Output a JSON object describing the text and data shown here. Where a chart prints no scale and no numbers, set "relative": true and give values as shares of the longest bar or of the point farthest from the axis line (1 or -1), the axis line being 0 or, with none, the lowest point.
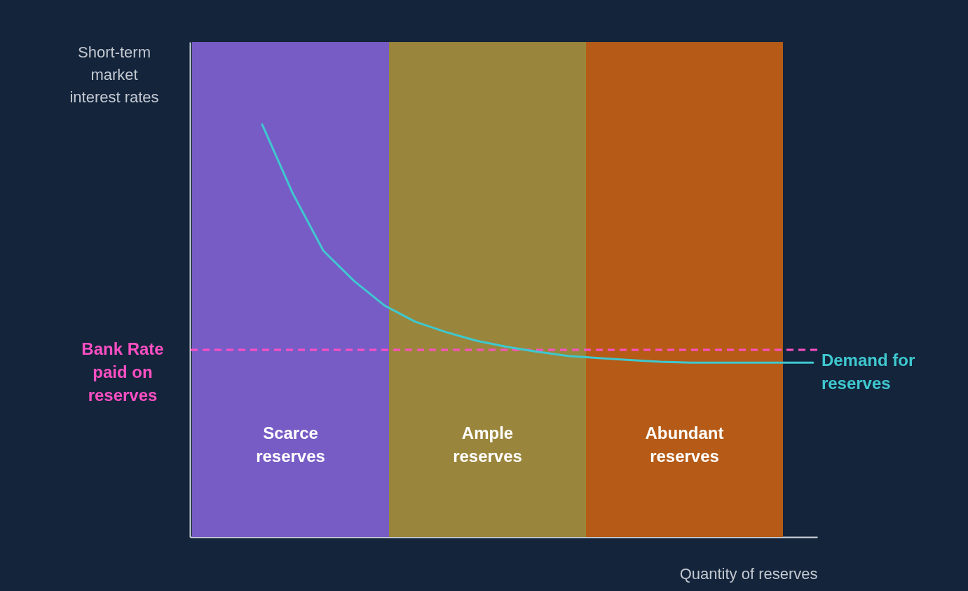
{
  "chart_data": {
    "type": "line",
    "relative": true,
    "xlabel": "Quantity of reserves",
    "grid": false,
    "line_style": "solid",
    "annotations": [
      "Short-term\nmarket\ninterest rates",
      "Scarce\nreserves",
      "Ample\nreserves",
      "Abundant\nreserves"
    ],
    "categories": [
      null,
      null,
      null,
      null,
      null,
      null,
      null,
      null,
      null,
      null,
      null,
      null,
      null,
      null,
      null,
      null,
      null,
      null,
      null
    ],
    "series": [
      {
        "name": "Demand for\nreserves",
        "color": "#3fc8cf",
        "values": [
          1.0,
          0.833,
          0.694,
          0.621,
          0.561,
          0.522,
          0.497,
          0.476,
          0.461,
          0.449,
          0.439,
          0.434,
          0.429,
          0.425,
          0.423,
          0.423,
          0.423,
          0.423,
          0.423
        ]
      }
    ],
    "ref_lines": [
      {
        "axis": "y",
        "value": 0.454,
        "label": "Bank Rate\npaid on\nreserves",
        "color": "#ff4fc3",
        "line_style": "dashed"
      }
    ]
  }
}
